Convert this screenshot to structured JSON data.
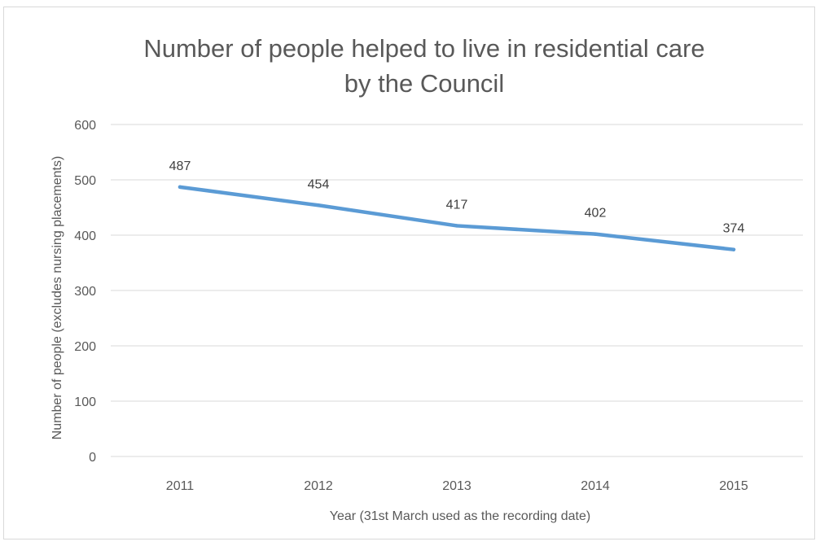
{
  "chart_data": {
    "type": "line",
    "title_lines": [
      "Number of people helped to live in residential care",
      "by the Council"
    ],
    "xlabel": "Year (31st March used as the recording date)",
    "ylabel": "Number of people (excludes nursing placements)",
    "categories": [
      "2011",
      "2012",
      "2013",
      "2014",
      "2015"
    ],
    "series": [
      {
        "values": [
          487,
          454,
          417,
          402,
          374
        ],
        "color": "#5b9bd5"
      }
    ],
    "ylim": [
      0,
      600
    ],
    "yticks": [
      0,
      100,
      200,
      300,
      400,
      500,
      600
    ],
    "grid": true,
    "legend": "none",
    "data_labels": true
  }
}
